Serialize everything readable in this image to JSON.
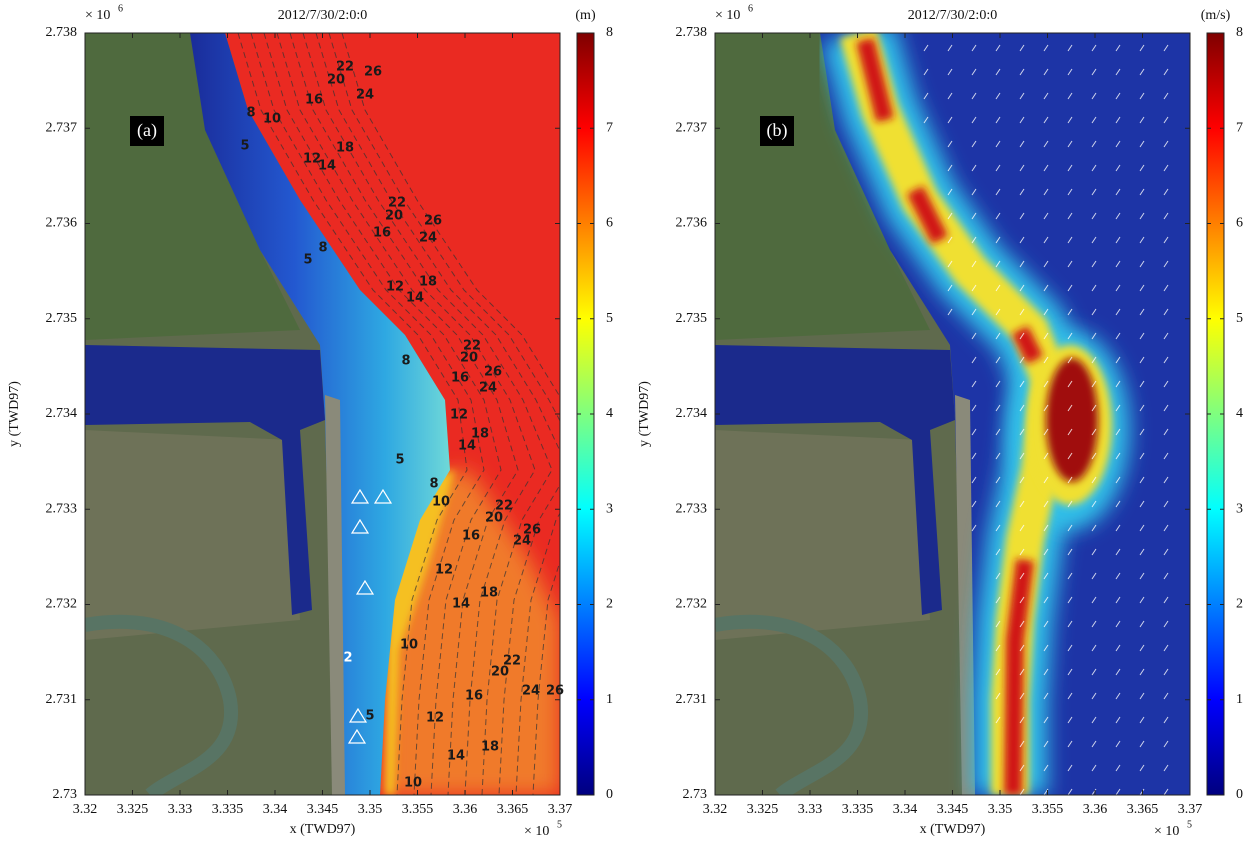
{
  "chart_data": [
    {
      "type": "map",
      "title": "2012/7/30/2:0:0",
      "panel_label": "(a)",
      "xlabel": "x (TWD97)",
      "ylabel": "y (TWD97)",
      "x_scale": "× 10",
      "x_scale_exp": "5",
      "y_scale": "× 10",
      "y_scale_exp": "6",
      "xlim": [
        3.32,
        3.37
      ],
      "xticks": [
        3.32,
        3.325,
        3.33,
        3.335,
        3.34,
        3.345,
        3.35,
        3.355,
        3.36,
        3.365,
        3.37
      ],
      "ylim": [
        2.73,
        2.738
      ],
      "yticks": [
        2.73,
        2.731,
        2.732,
        2.733,
        2.734,
        2.735,
        2.736,
        2.737,
        2.738
      ],
      "colorbar": {
        "label": "(m)",
        "lim": [
          0,
          8
        ],
        "ticks": [
          0,
          1,
          2,
          3,
          4,
          5,
          6,
          7,
          8
        ]
      },
      "contour_labels": [
        22,
        20,
        26,
        16,
        24,
        8,
        10,
        18,
        5,
        12,
        14,
        22,
        20,
        26,
        16,
        24,
        8,
        5,
        18,
        12,
        14,
        22,
        20,
        26,
        8,
        16,
        24,
        12,
        18,
        14,
        5,
        8,
        10,
        22,
        20,
        26,
        16,
        24,
        12,
        18,
        14,
        2,
        10,
        22,
        20,
        24,
        26,
        16,
        5,
        12,
        18,
        14,
        10
      ]
    },
    {
      "type": "map",
      "title": "2012/7/30/2:0:0",
      "panel_label": "(b)",
      "xlabel": "x (TWD97)",
      "ylabel": "y (TWD97)",
      "x_scale": "× 10",
      "x_scale_exp": "5",
      "y_scale": "× 10",
      "y_scale_exp": "6",
      "xlim": [
        3.32,
        3.37
      ],
      "xticks": [
        3.32,
        3.325,
        3.33,
        3.335,
        3.34,
        3.345,
        3.35,
        3.355,
        3.36,
        3.365,
        3.37
      ],
      "ylim": [
        2.73,
        2.738
      ],
      "yticks": [
        2.73,
        2.731,
        2.732,
        2.733,
        2.734,
        2.735,
        2.736,
        2.737,
        2.738
      ],
      "colorbar": {
        "label": "(m/s)",
        "lim": [
          0,
          8
        ],
        "ticks": [
          0,
          1,
          2,
          3,
          4,
          5,
          6,
          7,
          8
        ]
      }
    }
  ]
}
